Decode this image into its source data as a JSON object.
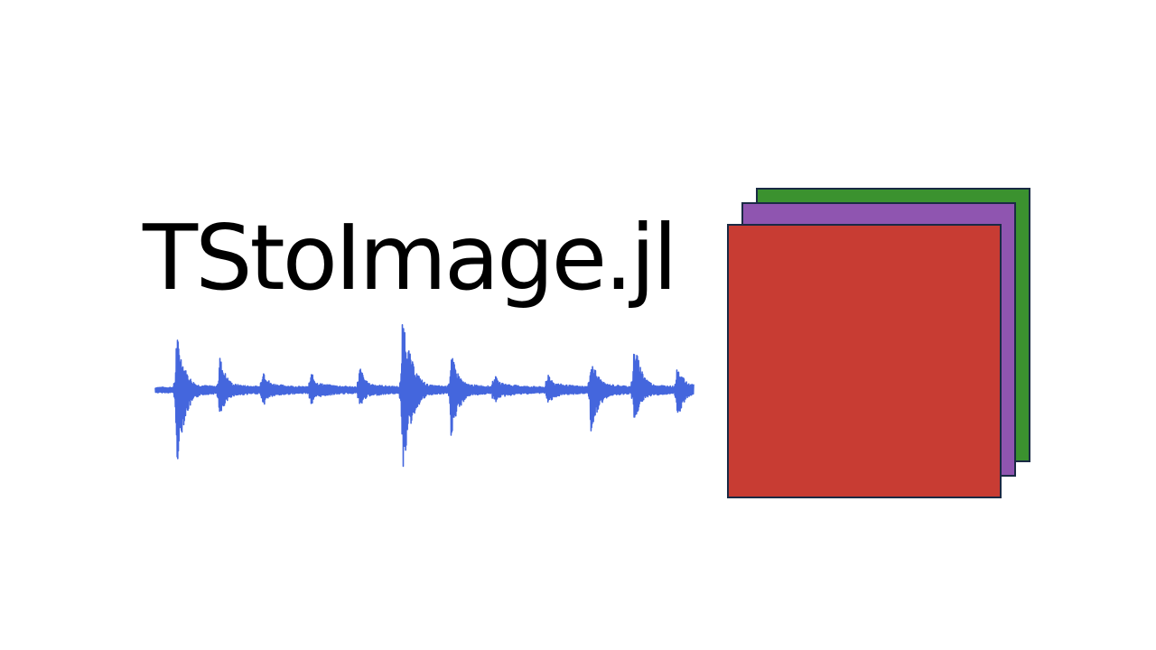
{
  "logo": {
    "title": "TStoImage.jl",
    "waveform": {
      "color": "#4466dd",
      "baseline": 0,
      "spikes": [
        {
          "t": 0.04,
          "up": 0.7,
          "down": 0.95,
          "width": 0.01
        },
        {
          "t": 0.12,
          "up": 0.42,
          "down": 0.38,
          "width": 0.009
        },
        {
          "t": 0.2,
          "up": 0.28,
          "down": 0.22,
          "width": 0.008
        },
        {
          "t": 0.29,
          "up": 0.22,
          "down": 0.2,
          "width": 0.008
        },
        {
          "t": 0.38,
          "up": 0.3,
          "down": 0.24,
          "width": 0.008
        },
        {
          "t": 0.46,
          "up": 0.95,
          "down": 1.0,
          "width": 0.011
        },
        {
          "t": 0.55,
          "up": 0.45,
          "down": 0.6,
          "width": 0.01
        },
        {
          "t": 0.63,
          "up": 0.2,
          "down": 0.18,
          "width": 0.008
        },
        {
          "t": 0.73,
          "up": 0.22,
          "down": 0.2,
          "width": 0.008
        },
        {
          "t": 0.81,
          "up": 0.4,
          "down": 0.58,
          "width": 0.01
        },
        {
          "t": 0.89,
          "up": 0.6,
          "down": 0.4,
          "width": 0.01
        },
        {
          "t": 0.97,
          "up": 0.32,
          "down": 0.38,
          "width": 0.009
        }
      ]
    },
    "layers": {
      "stroke": "#1a2a44",
      "back_color": "#3b922f",
      "middle_color": "#8f55b0",
      "front_color": "#c83c33"
    }
  }
}
